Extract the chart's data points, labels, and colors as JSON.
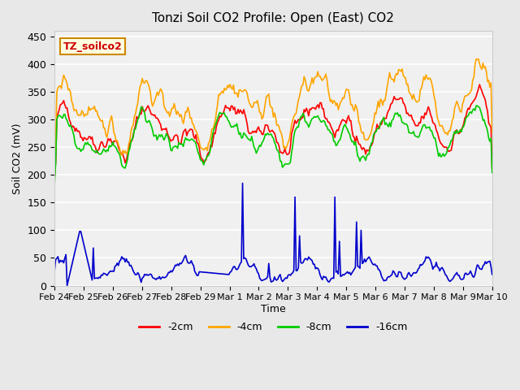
{
  "title": "Tonzi Soil CO2 Profile: Open (East) CO2",
  "xlabel": "Time",
  "ylabel": "Soil CO2 (mV)",
  "watermark": "TZ_soilco2",
  "ylim": [
    0,
    460
  ],
  "yticks": [
    0,
    50,
    100,
    150,
    200,
    250,
    300,
    350,
    400,
    450
  ],
  "colors": {
    "-2cm": "#ff0000",
    "-4cm": "#ffa500",
    "-8cm": "#00cc00",
    "-16cm": "#0000cc"
  },
  "legend_labels": [
    "-2cm",
    "-4cm",
    "-8cm",
    "-16cm"
  ],
  "bg_color": "#e8e8e8",
  "plot_bg_color": "#f0f0f0",
  "xtick_labels": [
    "Feb 24",
    "Feb 25",
    "Feb 26",
    "Feb 27",
    "Feb 28",
    "Feb 29",
    "Mar 1",
    "Mar 2",
    "Mar 3",
    "Mar 4",
    "Mar 5",
    "Mar 6",
    "Mar 7",
    "Mar 8",
    "Mar 9",
    "Mar 10"
  ],
  "n_points": 385,
  "seed": 42
}
